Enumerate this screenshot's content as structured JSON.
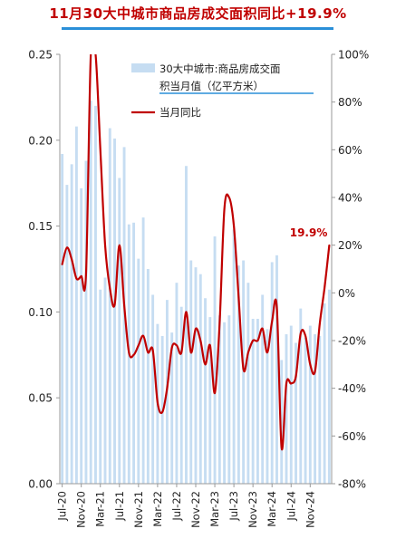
{
  "chart_data": {
    "type": "bar+line",
    "title": "11月30大中城市商品房成交面积同比+19.9%",
    "x_tick_labels": [
      "Jul-20",
      "Nov-20",
      "Mar-21",
      "Jul-21",
      "Nov-21",
      "Mar-22",
      "Jul-22",
      "Nov-22",
      "Mar-23",
      "Jul-23",
      "Nov-23",
      "Mar-24",
      "Jul-24",
      "Nov-24"
    ],
    "x_start": "Jul-20",
    "x_end": "Nov-24",
    "y_left": {
      "ticks": [
        "0.00",
        "0.05",
        "0.10",
        "0.15",
        "0.20",
        "0.25"
      ],
      "ylim": [
        0,
        0.25
      ]
    },
    "y_right": {
      "ticks": [
        "-80%",
        "-60%",
        "-40%",
        "-20%",
        "0%",
        "20%",
        "40%",
        "60%",
        "80%",
        "100%"
      ],
      "ylim": [
        -80,
        100
      ]
    },
    "series": [
      {
        "name": "30大中城市:商品房成交面积当月值（亿平方米）",
        "type": "bar",
        "axis": "left",
        "color": "#c6ddf2",
        "values": [
          0.192,
          0.174,
          0.186,
          0.208,
          0.172,
          0.188,
          0.223,
          0.22,
          0.113,
          0.12,
          0.207,
          0.201,
          0.178,
          0.196,
          0.151,
          0.152,
          0.131,
          0.155,
          0.125,
          0.11,
          0.093,
          0.086,
          0.107,
          0.088,
          0.117,
          0.103,
          0.185,
          0.13,
          0.126,
          0.122,
          0.108,
          0.097,
          0.144,
          0.098,
          0.094,
          0.098,
          0.148,
          0.127,
          0.13,
          0.117,
          0.096,
          0.096,
          0.11,
          0.09,
          0.129,
          0.133,
          0.072,
          0.087,
          0.092,
          0.082,
          0.102,
          0.085,
          0.092,
          0.087,
          0.086,
          0.105,
          0.113
        ]
      },
      {
        "name": "当月同比",
        "type": "line",
        "axis": "right",
        "color": "#c00000",
        "values": [
          12,
          19,
          14,
          6,
          7,
          8,
          100,
          100,
          60,
          20,
          2,
          -5,
          20,
          -5,
          -25,
          -26,
          -22,
          -18,
          -25,
          -24,
          -46,
          -50,
          -40,
          -23,
          -22,
          -25,
          -8,
          -25,
          -15,
          -20,
          -30,
          -22,
          -42,
          -13,
          35,
          40,
          28,
          -2,
          -32,
          -25,
          -20,
          -20,
          -15,
          -25,
          -12,
          -6,
          -65,
          -38,
          -38,
          -35,
          -17,
          -18,
          -30,
          -33,
          -13,
          2,
          19.9
        ]
      }
    ],
    "legend": {
      "bar_label_line1": "30大中城市:商品房成交面",
      "bar_label_line2": "积当月值（亿平方米）",
      "line_label": "当月同比",
      "position": "top-right"
    },
    "annotation": {
      "text": "19.9%",
      "value": 19.9,
      "color": "#c00000"
    },
    "colors": {
      "title": "#c00000",
      "title_underline": "#2a8fd8",
      "bar": "#c6ddf2",
      "line": "#c00000",
      "axis": "#9a9a9a",
      "tick_text": "#222222"
    }
  }
}
